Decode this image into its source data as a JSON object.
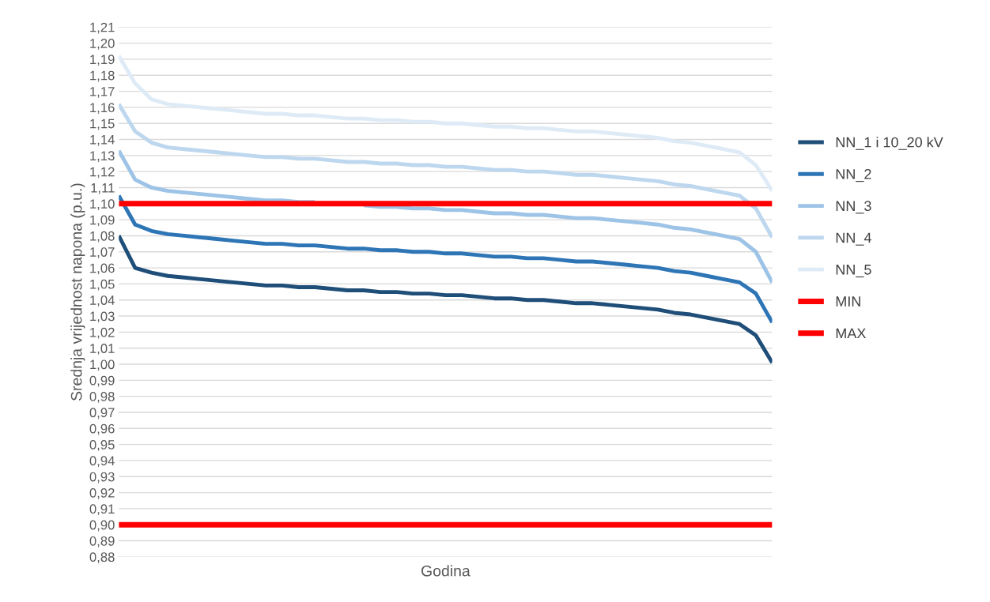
{
  "chart_data": {
    "type": "line",
    "xlabel": "Godina",
    "ylabel": "Srednja vrijednost napona (p.u.)",
    "categories": [
      null,
      null,
      null,
      null,
      null,
      null,
      null,
      null,
      null,
      null,
      null,
      null,
      null,
      null,
      null,
      null,
      null,
      null,
      null,
      null,
      null,
      null,
      null,
      null,
      null,
      null,
      null,
      null,
      null,
      null,
      null,
      null,
      null,
      null,
      null,
      null,
      null,
      null,
      null,
      null,
      null
    ],
    "series": [
      {
        "name": "NN_1 i 10_20 kV",
        "color": "#1f4e79",
        "values": [
          1.08,
          1.06,
          1.057,
          1.055,
          1.054,
          1.053,
          1.052,
          1.051,
          1.05,
          1.049,
          1.049,
          1.048,
          1.048,
          1.047,
          1.046,
          1.046,
          1.045,
          1.045,
          1.044,
          1.044,
          1.043,
          1.043,
          1.042,
          1.041,
          1.041,
          1.04,
          1.04,
          1.039,
          1.038,
          1.038,
          1.037,
          1.036,
          1.035,
          1.034,
          1.032,
          1.031,
          1.029,
          1.027,
          1.025,
          1.018,
          1.001
        ]
      },
      {
        "name": "NN_2",
        "color": "#2e75b6",
        "values": [
          1.105,
          1.087,
          1.083,
          1.081,
          1.08,
          1.079,
          1.078,
          1.077,
          1.076,
          1.075,
          1.075,
          1.074,
          1.074,
          1.073,
          1.072,
          1.072,
          1.071,
          1.071,
          1.07,
          1.07,
          1.069,
          1.069,
          1.068,
          1.067,
          1.067,
          1.066,
          1.066,
          1.065,
          1.064,
          1.064,
          1.063,
          1.062,
          1.061,
          1.06,
          1.058,
          1.057,
          1.055,
          1.053,
          1.051,
          1.044,
          1.026
        ]
      },
      {
        "name": "NN_3",
        "color": "#9dc3e6",
        "values": [
          1.133,
          1.115,
          1.11,
          1.108,
          1.107,
          1.106,
          1.105,
          1.104,
          1.103,
          1.102,
          1.102,
          1.101,
          1.101,
          null,
          null,
          1.099,
          1.098,
          1.098,
          1.097,
          1.097,
          1.096,
          1.096,
          1.095,
          1.094,
          1.094,
          1.093,
          1.093,
          1.092,
          1.091,
          1.091,
          1.09,
          1.089,
          1.088,
          1.087,
          1.085,
          1.084,
          1.082,
          1.08,
          1.078,
          1.07,
          1.051
        ]
      },
      {
        "name": "NN_4",
        "color": "#bdd7ee",
        "values": [
          1.162,
          1.145,
          1.138,
          1.135,
          1.134,
          1.133,
          1.132,
          1.131,
          1.13,
          1.129,
          1.129,
          1.128,
          1.128,
          1.127,
          1.126,
          1.126,
          1.125,
          1.125,
          1.124,
          1.124,
          1.123,
          1.123,
          1.122,
          1.121,
          1.121,
          1.12,
          1.12,
          1.119,
          1.118,
          1.118,
          1.117,
          1.116,
          1.115,
          1.114,
          1.112,
          1.111,
          1.109,
          1.107,
          1.105,
          1.097,
          1.079
        ]
      },
      {
        "name": "NN_5",
        "color": "#deebf7",
        "values": [
          1.192,
          1.175,
          1.165,
          1.162,
          1.161,
          1.16,
          1.159,
          1.158,
          1.157,
          1.156,
          1.156,
          1.155,
          1.155,
          1.154,
          1.153,
          1.153,
          1.152,
          1.152,
          1.151,
          1.151,
          1.15,
          1.15,
          1.149,
          1.148,
          1.148,
          1.147,
          1.147,
          1.146,
          1.145,
          1.145,
          1.144,
          1.143,
          1.142,
          1.141,
          1.139,
          1.138,
          1.136,
          1.134,
          1.132,
          1.124,
          1.108
        ]
      },
      {
        "name": "MIN",
        "color": "#ff0000",
        "values": [
          0.9,
          0.9,
          0.9,
          0.9,
          0.9,
          0.9,
          0.9,
          0.9,
          0.9,
          0.9,
          0.9,
          0.9,
          0.9,
          0.9,
          0.9,
          0.9,
          0.9,
          0.9,
          0.9,
          0.9,
          0.9,
          0.9,
          0.9,
          0.9,
          0.9,
          0.9,
          0.9,
          0.9,
          0.9,
          0.9,
          0.9,
          0.9,
          0.9,
          0.9,
          0.9,
          0.9,
          0.9,
          0.9,
          0.9,
          0.9,
          0.9
        ]
      },
      {
        "name": "MAX",
        "color": "#ff0000",
        "values": [
          1.1,
          1.1,
          1.1,
          1.1,
          1.1,
          1.1,
          1.1,
          1.1,
          1.1,
          1.1,
          1.1,
          1.1,
          1.1,
          1.1,
          1.1,
          1.1,
          1.1,
          1.1,
          1.1,
          1.1,
          1.1,
          1.1,
          1.1,
          1.1,
          1.1,
          1.1,
          1.1,
          1.1,
          1.1,
          1.1,
          1.1,
          1.1,
          1.1,
          1.1,
          1.1,
          1.1,
          1.1,
          1.1,
          1.1,
          1.1,
          1.1
        ]
      }
    ],
    "ylim": [
      0.88,
      1.21
    ],
    "yticks": [
      {
        "value": 0.88,
        "label": "0,88"
      },
      {
        "value": 0.89,
        "label": "0,89"
      },
      {
        "value": 0.9,
        "label": "0,90"
      },
      {
        "value": 0.91,
        "label": "0,91"
      },
      {
        "value": 0.92,
        "label": "0,92"
      },
      {
        "value": 0.93,
        "label": "0,93"
      },
      {
        "value": 0.94,
        "label": "0,94"
      },
      {
        "value": 0.95,
        "label": "0,95"
      },
      {
        "value": 0.96,
        "label": "0,96"
      },
      {
        "value": 0.97,
        "label": "0,97"
      },
      {
        "value": 0.98,
        "label": "0,98"
      },
      {
        "value": 0.99,
        "label": "0,99"
      },
      {
        "value": 1.0,
        "label": "1,00"
      },
      {
        "value": 1.01,
        "label": "1,01"
      },
      {
        "value": 1.02,
        "label": "1,02"
      },
      {
        "value": 1.03,
        "label": "1,03"
      },
      {
        "value": 1.04,
        "label": "1,04"
      },
      {
        "value": 1.05,
        "label": "1,05"
      },
      {
        "value": 1.06,
        "label": "1,06"
      },
      {
        "value": 1.07,
        "label": "1,07"
      },
      {
        "value": 1.08,
        "label": "1,08"
      },
      {
        "value": 1.09,
        "label": "1,09"
      },
      {
        "value": 1.1,
        "label": "1,10"
      },
      {
        "value": 1.11,
        "label": "1,11"
      },
      {
        "value": 1.12,
        "label": "1,12"
      },
      {
        "value": 1.13,
        "label": "1,13"
      },
      {
        "value": 1.14,
        "label": "1,14"
      },
      {
        "value": 1.15,
        "label": "1,15"
      },
      {
        "value": 1.16,
        "label": "1,16"
      },
      {
        "value": 1.17,
        "label": "1,17"
      },
      {
        "value": 1.18,
        "label": "1,18"
      },
      {
        "value": 1.19,
        "label": "1,19"
      },
      {
        "value": 1.2,
        "label": "1,20"
      },
      {
        "value": 1.21,
        "label": "1,21"
      }
    ],
    "grid": "y",
    "legend": "right",
    "tick_labels": "y"
  }
}
